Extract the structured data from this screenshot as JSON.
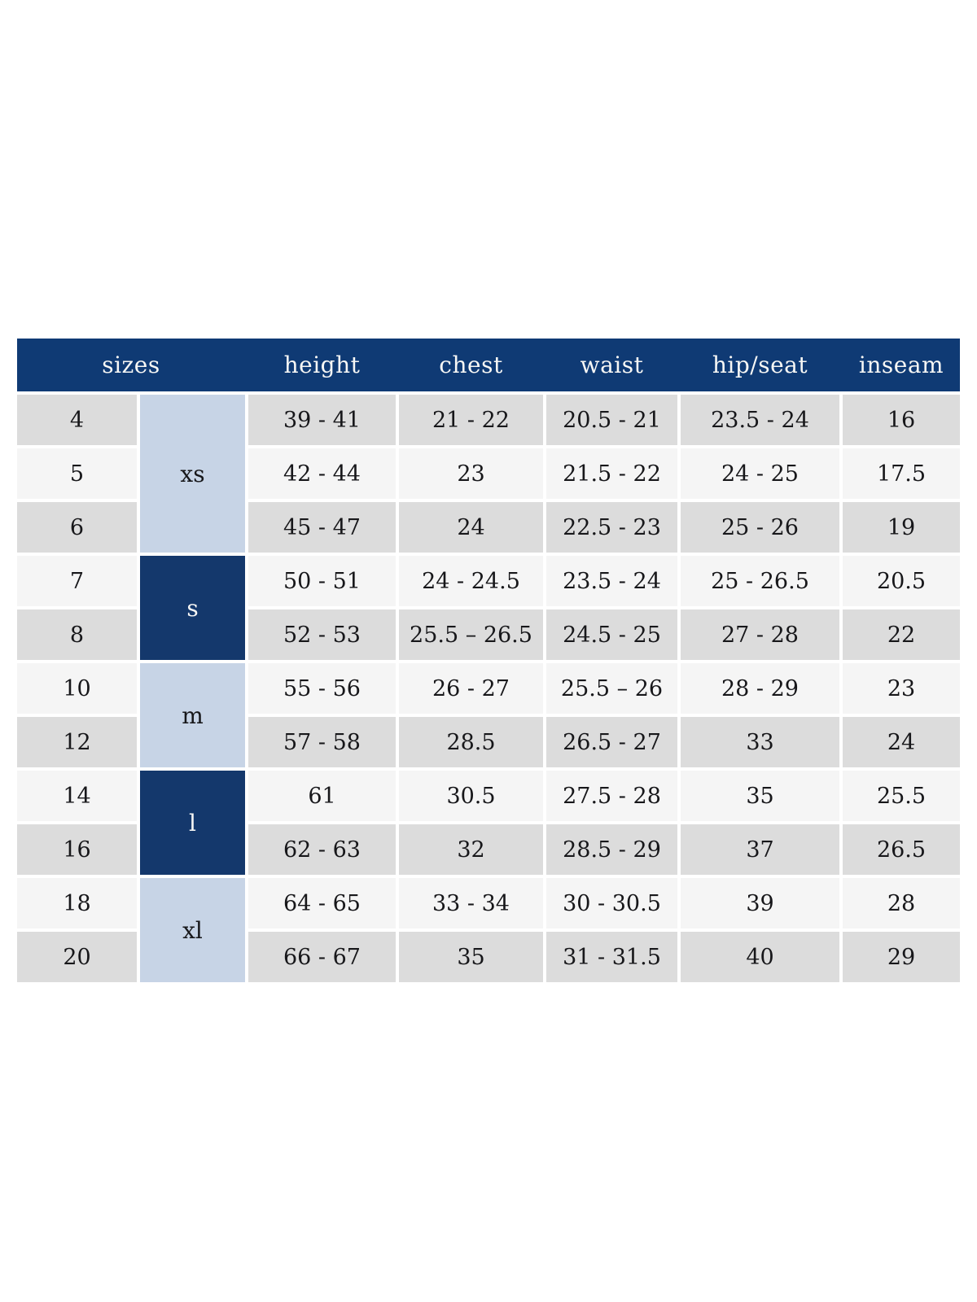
{
  "page": {
    "background_color": "#ffffff"
  },
  "chart_data": {
    "type": "table",
    "columns": [
      "sizes",
      "height",
      "chest",
      "waist",
      "hip/seat",
      "inseam"
    ],
    "column_keys": [
      "size",
      "height",
      "chest",
      "waist",
      "hip_seat",
      "inseam"
    ],
    "size_groups": [
      {
        "label": "xs",
        "shade": "light",
        "row_start": 1,
        "row_span": 3
      },
      {
        "label": "s",
        "shade": "dark",
        "row_start": 4,
        "row_span": 2
      },
      {
        "label": "m",
        "shade": "light",
        "row_start": 6,
        "row_span": 2
      },
      {
        "label": "l",
        "shade": "dark",
        "row_start": 8,
        "row_span": 2
      },
      {
        "label": "xl",
        "shade": "light",
        "row_start": 10,
        "row_span": 2
      }
    ],
    "rows": [
      {
        "size": "4",
        "height": "39 - 41",
        "chest": "21 - 22",
        "waist": "20.5 - 21",
        "hip_seat": "23.5 - 24",
        "inseam": "16"
      },
      {
        "size": "5",
        "height": "42 - 44",
        "chest": "23",
        "waist": "21.5 - 22",
        "hip_seat": "24 - 25",
        "inseam": "17.5"
      },
      {
        "size": "6",
        "height": "45 - 47",
        "chest": "24",
        "waist": "22.5 - 23",
        "hip_seat": "25 - 26",
        "inseam": "19"
      },
      {
        "size": "7",
        "height": "50 - 51",
        "chest": "24 - 24.5",
        "waist": "23.5 - 24",
        "hip_seat": "25 - 26.5",
        "inseam": "20.5"
      },
      {
        "size": "8",
        "height": "52 - 53",
        "chest": "25.5 – 26.5",
        "waist": "24.5 - 25",
        "hip_seat": "27 - 28",
        "inseam": "22"
      },
      {
        "size": "10",
        "height": "55 - 56",
        "chest": "26 - 27",
        "waist": "25.5 – 26",
        "hip_seat": "28 - 29",
        "inseam": "23"
      },
      {
        "size": "12",
        "height": "57 - 58",
        "chest": "28.5",
        "waist": "26.5 - 27",
        "hip_seat": "33",
        "inseam": "24"
      },
      {
        "size": "14",
        "height": "61",
        "chest": "30.5",
        "waist": "27.5 - 28",
        "hip_seat": "35",
        "inseam": "25.5"
      },
      {
        "size": "16",
        "height": "62 - 63",
        "chest": "32",
        "waist": "28.5 - 29",
        "hip_seat": "37",
        "inseam": "26.5"
      },
      {
        "size": "18",
        "height": "64 - 65",
        "chest": "33 - 34",
        "waist": "30 - 30.5",
        "hip_seat": "39",
        "inseam": "28"
      },
      {
        "size": "20",
        "height": "66 - 67",
        "chest": "35",
        "waist": "31 - 31.5",
        "hip_seat": "40",
        "inseam": "29"
      }
    ],
    "layout": {
      "first_row_shade": "gray",
      "row_shades_alternate": true
    },
    "colors": {
      "header_bg": "#0f3a74",
      "header_text": "#f7f7f5",
      "group_dark_bg": "#14386c",
      "group_dark_text": "#f7f7f5",
      "group_light_bg": "#c7d4e6",
      "row_gray_bg": "#dcdcdc",
      "row_light_bg": "#f5f5f5",
      "cell_text": "#17171a",
      "grid_gap": "#ffffff"
    }
  }
}
